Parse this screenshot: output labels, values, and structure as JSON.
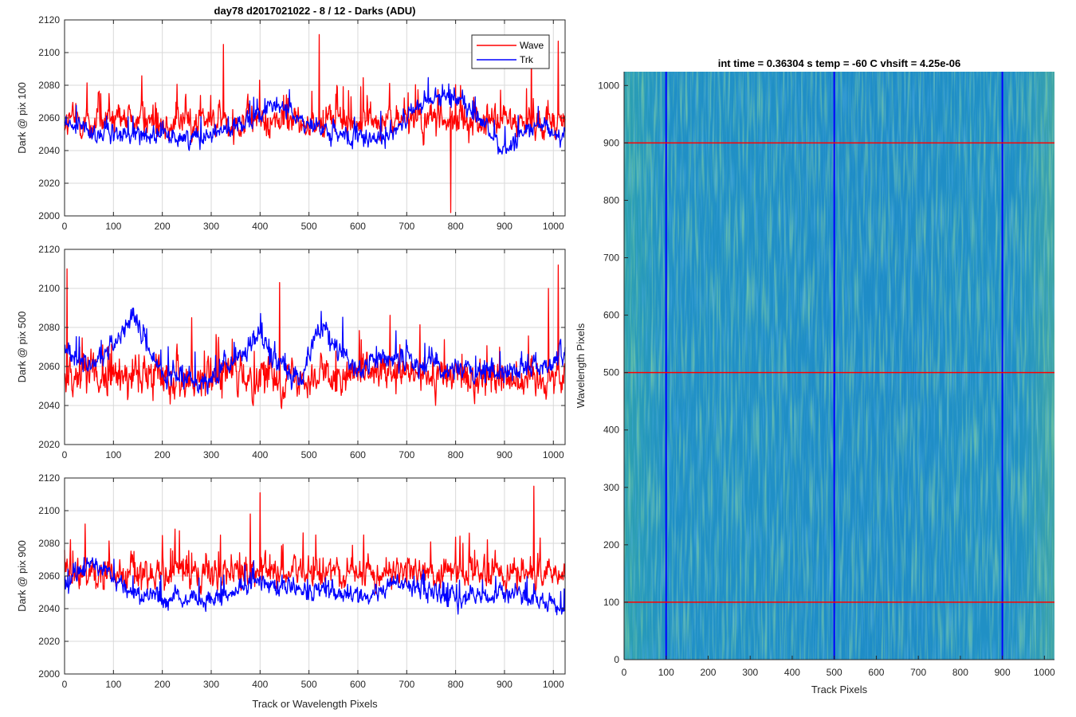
{
  "figure_title": "day78 d2017021022 - 8 / 12 - Darks (ADU)",
  "colors": {
    "wave": "#ff0000",
    "trk": "#0000ff",
    "grid": "#d9d9d9",
    "axis": "#262626"
  },
  "chart_data": [
    {
      "type": "line",
      "name": "top-panel",
      "xlabel": "",
      "ylabel": "Dark @ pix 100",
      "xlim": [
        0,
        1024
      ],
      "ylim": [
        2000,
        2120
      ],
      "xticks": [
        0,
        100,
        200,
        300,
        400,
        500,
        600,
        700,
        800,
        900,
        1000
      ],
      "yticks": [
        2000,
        2020,
        2040,
        2060,
        2080,
        2100,
        2120
      ],
      "legend": {
        "position": "top-right",
        "entries": [
          "Wave",
          "Trk"
        ]
      },
      "series": [
        {
          "name": "Wave",
          "color": "#ff0000",
          "base": 2058,
          "noise": 10,
          "spikes": [
            [
              521,
              2111
            ],
            [
              790,
              2002
            ],
            [
              325,
              2105
            ],
            [
              955,
              2107
            ],
            [
              1010,
              2107
            ]
          ]
        },
        {
          "name": "Trk",
          "color": "#0000ff",
          "base": 2052,
          "noise": 6,
          "trend": [
            [
              0,
              2056
            ],
            [
              80,
              2050
            ],
            [
              150,
              2050
            ],
            [
              250,
              2048
            ],
            [
              350,
              2055
            ],
            [
              440,
              2068
            ],
            [
              520,
              2052
            ],
            [
              640,
              2045
            ],
            [
              730,
              2068
            ],
            [
              800,
              2075
            ],
            [
              900,
              2040
            ],
            [
              950,
              2055
            ],
            [
              1024,
              2050
            ]
          ]
        }
      ]
    },
    {
      "type": "line",
      "name": "middle-panel",
      "xlabel": "",
      "ylabel": "Dark @ pix 500",
      "xlim": [
        0,
        1024
      ],
      "ylim": [
        2020,
        2120
      ],
      "xticks": [
        0,
        100,
        200,
        300,
        400,
        500,
        600,
        700,
        800,
        900,
        1000
      ],
      "yticks": [
        2020,
        2040,
        2060,
        2080,
        2100,
        2120
      ],
      "series": [
        {
          "name": "Wave",
          "color": "#ff0000",
          "base": 2055,
          "noise": 10,
          "spikes": [
            [
              5,
              2110
            ],
            [
              1010,
              2112
            ],
            [
              990,
              2100
            ],
            [
              440,
              2103
            ]
          ]
        },
        {
          "name": "Trk",
          "color": "#0000ff",
          "base": 2058,
          "noise": 6,
          "trend": [
            [
              0,
              2070
            ],
            [
              60,
              2060
            ],
            [
              140,
              2085
            ],
            [
              200,
              2055
            ],
            [
              300,
              2052
            ],
            [
              400,
              2075
            ],
            [
              480,
              2052
            ],
            [
              520,
              2080
            ],
            [
              600,
              2058
            ],
            [
              650,
              2065
            ],
            [
              750,
              2062
            ],
            [
              850,
              2055
            ],
            [
              950,
              2060
            ],
            [
              1024,
              2065
            ]
          ]
        }
      ]
    },
    {
      "type": "line",
      "name": "bottom-panel",
      "xlabel": "Track or Wavelength Pixels",
      "ylabel": "Dark @ pix 900",
      "xlim": [
        0,
        1024
      ],
      "ylim": [
        2000,
        2120
      ],
      "xticks": [
        0,
        100,
        200,
        300,
        400,
        500,
        600,
        700,
        800,
        900,
        1000
      ],
      "yticks": [
        2000,
        2020,
        2040,
        2060,
        2080,
        2100,
        2120
      ],
      "series": [
        {
          "name": "Wave",
          "color": "#ff0000",
          "base": 2062,
          "noise": 10,
          "spikes": [
            [
              400,
              2111
            ],
            [
              960,
              2115
            ],
            [
              380,
              2098
            ]
          ]
        },
        {
          "name": "Trk",
          "color": "#0000ff",
          "base": 2048,
          "noise": 6,
          "trend": [
            [
              0,
              2055
            ],
            [
              60,
              2070
            ],
            [
              150,
              2048
            ],
            [
              300,
              2045
            ],
            [
              400,
              2058
            ],
            [
              500,
              2050
            ],
            [
              600,
              2048
            ],
            [
              700,
              2055
            ],
            [
              800,
              2045
            ],
            [
              900,
              2050
            ],
            [
              1024,
              2040
            ]
          ]
        }
      ]
    },
    {
      "type": "heatmap",
      "name": "dark-image",
      "title": "int time = 0.36304 s    temp = -60 C    vhsift = 4.25e-06",
      "xlabel": "Track Pixels",
      "ylabel": "Wavelength Pixels",
      "xlim": [
        0,
        1024
      ],
      "ylim": [
        0,
        1024
      ],
      "xticks": [
        0,
        100,
        200,
        300,
        400,
        500,
        600,
        700,
        800,
        900,
        1000
      ],
      "yticks": [
        0,
        100,
        200,
        300,
        400,
        500,
        600,
        700,
        800,
        900,
        1000
      ],
      "vertical_markers": [
        100,
        500,
        900
      ],
      "horizontal_markers": [
        100,
        500,
        900
      ],
      "vertical_marker_color": "#0000ff",
      "horizontal_marker_color": "#ff0000",
      "colormap": [
        "#1f7ecb",
        "#1a9ac0",
        "#3ab0a2",
        "#7cbd74"
      ]
    }
  ]
}
